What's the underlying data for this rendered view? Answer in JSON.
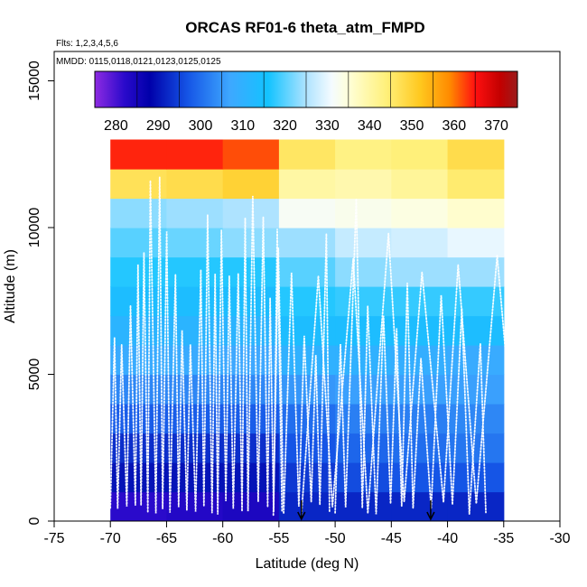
{
  "chart_data": {
    "type": "heatmap",
    "title": "ORCAS RF01-6 theta_atm_FMPD",
    "flights_label": "Flts: 1,2,3,4,5,6",
    "dates_label": "MMDD: 0115,0118,0121,0123,0125,0125",
    "xlabel": "Latitude (deg N)",
    "ylabel": "Altitude (m)",
    "xlim": [
      -75,
      -30
    ],
    "ylim": [
      0,
      16000
    ],
    "x_ticks": [
      "-75",
      "-70",
      "-65",
      "-60",
      "-55",
      "-50",
      "-45",
      "-40",
      "-35",
      "-30"
    ],
    "x_tick_values": [
      -75,
      -70,
      -65,
      -60,
      -55,
      -50,
      -45,
      -40,
      -35,
      -30
    ],
    "y_ticks": [
      "0",
      "5000",
      "10000",
      "15000"
    ],
    "y_tick_values": [
      0,
      5000,
      10000,
      15000
    ],
    "colorbar": {
      "ticks": [
        "280",
        "290",
        "300",
        "310",
        "320",
        "330",
        "340",
        "350",
        "360",
        "370"
      ],
      "tick_values": [
        280,
        290,
        300,
        310,
        320,
        330,
        340,
        350,
        360,
        370
      ],
      "range": [
        275,
        375
      ]
    },
    "lat_bins": [
      -70,
      -65,
      -60,
      -55,
      -50,
      -45,
      -40,
      -35
    ],
    "alt_bins": [
      0,
      1000,
      2000,
      3000,
      4000,
      5000,
      6000,
      7000,
      8000,
      9000,
      10000,
      11000,
      12000
    ],
    "grid_values": [
      [
        282,
        283,
        284,
        292,
        292,
        292,
        292
      ],
      [
        290,
        290,
        290,
        294,
        296,
        297,
        297
      ],
      [
        293,
        293,
        293,
        297,
        299,
        300,
        301
      ],
      [
        298,
        298,
        298,
        300,
        302,
        302,
        303
      ],
      [
        303,
        303,
        303,
        305,
        306,
        306,
        306
      ],
      [
        308,
        308,
        307,
        310,
        310,
        309,
        308
      ],
      [
        311,
        311,
        311,
        314,
        314,
        314,
        314
      ],
      [
        314,
        314,
        314,
        317,
        318,
        318,
        318
      ],
      [
        317,
        317,
        317,
        320,
        323,
        324,
        324
      ],
      [
        320,
        321,
        323,
        324,
        327,
        328,
        330
      ],
      [
        323,
        324,
        325,
        332,
        333,
        334,
        336
      ],
      [
        347,
        348,
        350,
        340,
        339,
        341,
        345
      ],
      [
        364,
        364,
        362,
        346,
        343,
        344,
        348
      ]
    ],
    "markers_lat": [
      -53,
      -41.5
    ]
  }
}
